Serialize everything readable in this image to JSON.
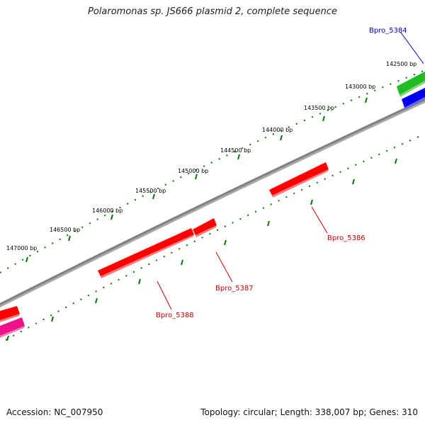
{
  "title": "Polaromonas sp. JS666 plasmid 2, complete sequence",
  "footer": {
    "accession": "Accession: NC_007950",
    "summary": "Topology: circular; Length: 338,007 bp; Genes: 310"
  },
  "tick_labels": [
    "142500 bp",
    "143000 bp",
    "143500 bp",
    "144000 bp",
    "144500 bp",
    "145000 bp",
    "145500 bp",
    "146000 bp",
    "146500 bp",
    "147000 bp"
  ],
  "genes": [
    {
      "name": "Bpro_5384",
      "color": "#0000cc"
    },
    {
      "name": "Bpro_5386",
      "color": "#cc0000"
    },
    {
      "name": "Bpro_5387",
      "color": "#cc0000"
    },
    {
      "name": "Bpro_5388",
      "color": "#cc0000"
    }
  ],
  "colors": {
    "backbone": "#808080",
    "ticks": "#007700",
    "feature_red": "#ff0000",
    "feature_green": "#22bb22",
    "feature_blue": "#0000ee",
    "feature_magenta": "#ee1188"
  }
}
